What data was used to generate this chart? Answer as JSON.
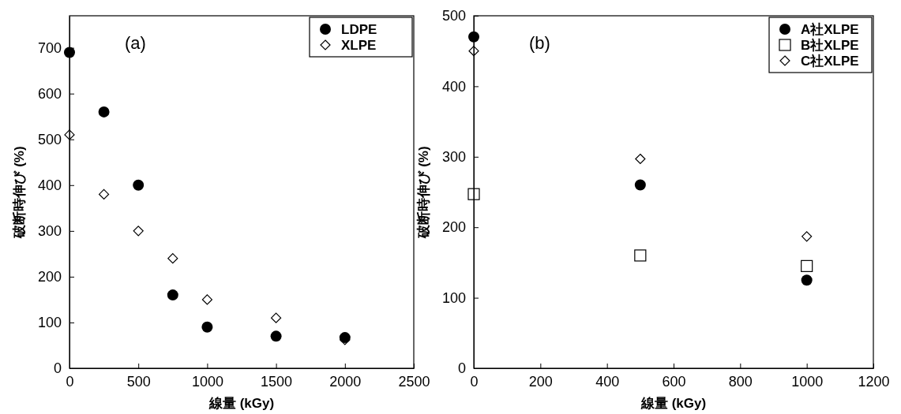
{
  "chart_data": [
    {
      "type": "scatter",
      "xlabel": "線量 (kGy)",
      "ylabel": "破断時伸び (%)",
      "annotations": [
        "(a)"
      ],
      "xlim": [
        0,
        2500
      ],
      "ylim": [
        0,
        770
      ],
      "xticks": [
        0,
        500,
        1000,
        1500,
        2000,
        2500
      ],
      "yticks": [
        0,
        100,
        200,
        300,
        400,
        500,
        600,
        700
      ],
      "legend": "top right",
      "x": [
        0,
        250,
        500,
        750,
        1000,
        1500,
        2000
      ],
      "series": [
        {
          "name": "LDPE",
          "color": "#000000",
          "marker": "circle",
          "values": [
            690,
            560,
            400,
            160,
            90,
            70,
            67
          ]
        },
        {
          "name": "XLPE",
          "color": "#000000",
          "marker": "diamond",
          "values": [
            510,
            380,
            300,
            240,
            150,
            110,
            62
          ]
        }
      ]
    },
    {
      "type": "scatter",
      "xlabel": "線量 (kGy)",
      "ylabel": "破断時伸び (%)",
      "annotations": [
        "(b)"
      ],
      "xlim": [
        0,
        1200
      ],
      "ylim": [
        0,
        500
      ],
      "xticks": [
        0,
        200,
        400,
        600,
        800,
        1000,
        1200
      ],
      "yticks": [
        0,
        100,
        200,
        300,
        400,
        500
      ],
      "legend": "top right",
      "x": [
        0,
        500,
        1000
      ],
      "series": [
        {
          "name": "A社XLPE",
          "color": "#000000",
          "marker": "circle",
          "values": [
            470,
            260,
            125
          ]
        },
        {
          "name": "B社XLPE",
          "color": "#000000",
          "marker": "square",
          "values": [
            247,
            160,
            145
          ]
        },
        {
          "name": "C社XLPE",
          "color": "#000000",
          "marker": "diamond",
          "values": [
            450,
            297,
            187
          ]
        }
      ]
    }
  ]
}
